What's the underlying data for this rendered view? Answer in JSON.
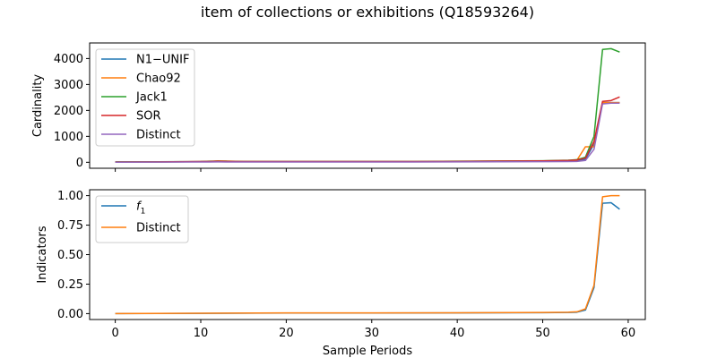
{
  "title": "item of collections or exhibitions (Q18593264)",
  "colors": {
    "blue": "#1f77b4",
    "orange": "#ff7f0e",
    "green": "#2ca02c",
    "red": "#d62728",
    "purple": "#9467bd"
  },
  "chart_data": [
    {
      "type": "line",
      "title": "item of collections or exhibitions (Q18593264)",
      "xlabel": "",
      "ylabel": "Cardinality",
      "xlim": [
        -3,
        62
      ],
      "ylim": [
        -230,
        4600
      ],
      "xticks": [
        0,
        10,
        20,
        30,
        40,
        50,
        60
      ],
      "yticks": [
        0,
        1000,
        2000,
        3000,
        4000
      ],
      "xtick_labels_visible": false,
      "legend_position": "upper left",
      "x": [
        0,
        5,
        10,
        11,
        12,
        13,
        15,
        20,
        25,
        30,
        35,
        40,
        45,
        50,
        53,
        54,
        55,
        56,
        57,
        58,
        59
      ],
      "series": [
        {
          "name": "N1−UNIF",
          "color": "#1f77b4",
          "values": [
            10,
            12,
            25,
            30,
            35,
            30,
            25,
            25,
            25,
            25,
            25,
            30,
            35,
            40,
            45,
            50,
            120,
            700,
            2300,
            2300,
            2300
          ]
        },
        {
          "name": "Chao92",
          "color": "#ff7f0e",
          "values": [
            10,
            12,
            25,
            30,
            50,
            45,
            30,
            25,
            25,
            25,
            25,
            30,
            35,
            45,
            60,
            80,
            600,
            600,
            2300,
            2300,
            2300
          ]
        },
        {
          "name": "Jack1",
          "color": "#2ca02c",
          "values": [
            15,
            18,
            30,
            40,
            45,
            40,
            30,
            30,
            30,
            30,
            30,
            40,
            50,
            60,
            80,
            100,
            200,
            1000,
            4350,
            4380,
            4250
          ]
        },
        {
          "name": "SOR",
          "color": "#d62728",
          "values": [
            12,
            14,
            28,
            35,
            40,
            35,
            28,
            28,
            28,
            28,
            28,
            35,
            45,
            55,
            70,
            90,
            160,
            800,
            2350,
            2380,
            2520
          ]
        },
        {
          "name": "Distinct",
          "color": "#9467bd",
          "values": [
            5,
            6,
            10,
            12,
            15,
            12,
            10,
            12,
            12,
            12,
            12,
            15,
            20,
            25,
            30,
            35,
            70,
            500,
            2250,
            2280,
            2280
          ]
        }
      ]
    },
    {
      "type": "line",
      "title": "",
      "xlabel": "Sample Periods",
      "ylabel": "Indicators",
      "xlim": [
        -3,
        62
      ],
      "ylim": [
        -0.05,
        1.05
      ],
      "xticks": [
        0,
        10,
        20,
        30,
        40,
        50,
        60
      ],
      "yticks": [
        0.0,
        0.25,
        0.5,
        0.75,
        1.0
      ],
      "xtick_labels": [
        "0",
        "10",
        "20",
        "30",
        "40",
        "50",
        "60"
      ],
      "ytick_labels": [
        "0.00",
        "0.25",
        "0.50",
        "0.75",
        "1.00"
      ],
      "legend_position": "upper left",
      "x": [
        0,
        10,
        20,
        30,
        40,
        50,
        53,
        54,
        55,
        56,
        57,
        58,
        59
      ],
      "series": [
        {
          "name": "f1",
          "name_base": "f",
          "name_sub": "1",
          "color": "#1f77b4",
          "values": [
            0.0,
            0.002,
            0.005,
            0.005,
            0.006,
            0.008,
            0.01,
            0.012,
            0.03,
            0.22,
            0.935,
            0.94,
            0.885
          ]
        },
        {
          "name": "Distinct",
          "color": "#ff7f0e",
          "values": [
            0.0,
            0.003,
            0.006,
            0.006,
            0.007,
            0.01,
            0.012,
            0.015,
            0.04,
            0.24,
            0.99,
            1.0,
            1.0
          ]
        }
      ]
    }
  ]
}
